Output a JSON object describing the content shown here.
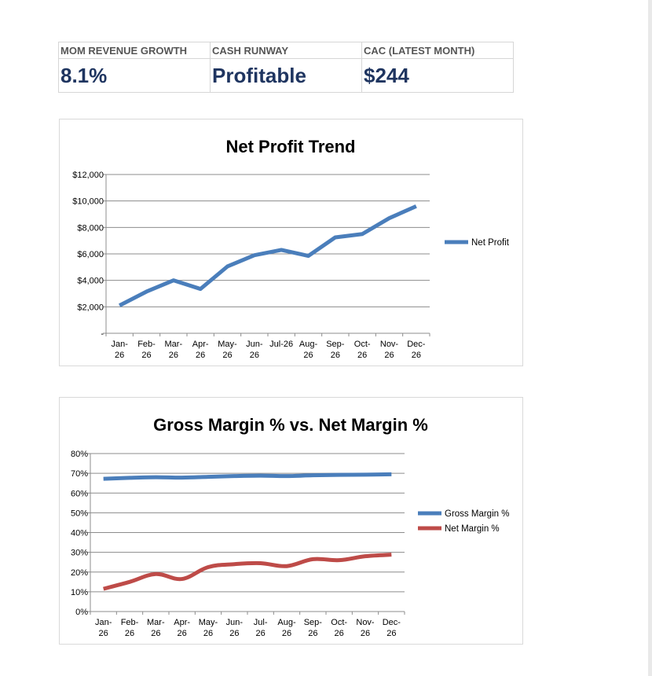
{
  "kpis": [
    {
      "label": "MOM REVENUE GROWTH",
      "value": "8.1%"
    },
    {
      "label": "CASH RUNWAY",
      "value": "Profitable"
    },
    {
      "label": "CAC (LATEST MONTH)",
      "value": "$244"
    }
  ],
  "colors": {
    "kpi_value": "#1f3560",
    "series_blue": "#4a7ebb",
    "series_red": "#be4b48",
    "gridline": "#8c8c8c"
  },
  "chart_data": [
    {
      "type": "line",
      "title": "Net Profit Trend",
      "categories": [
        "Jan-26",
        "Feb-26",
        "Mar-26",
        "Apr-26",
        "May-26",
        "Jun-26",
        "Jul-26",
        "Aug-26",
        "Sep-26",
        "Oct-26",
        "Nov-26",
        "Dec-26"
      ],
      "category_labels": [
        [
          "Jan-",
          "26"
        ],
        [
          "Feb-",
          "26"
        ],
        [
          "Mar-",
          "26"
        ],
        [
          "Apr-",
          "26"
        ],
        [
          "May-",
          "26"
        ],
        [
          "Jun-",
          "26"
        ],
        [
          "Jul-26"
        ],
        [
          "Aug-",
          "26"
        ],
        [
          "Sep-",
          "26"
        ],
        [
          "Oct-",
          "26"
        ],
        [
          "Nov-",
          "26"
        ],
        [
          "Dec-",
          "26"
        ]
      ],
      "series": [
        {
          "name": "Net Profit",
          "color": "#4a7ebb",
          "values": [
            2100,
            3150,
            4000,
            3350,
            5050,
            5900,
            6300,
            5850,
            7250,
            7500,
            8700,
            9600
          ]
        }
      ],
      "ylim": [
        0,
        12000
      ],
      "yticks": [
        0,
        2000,
        4000,
        6000,
        8000,
        10000,
        12000
      ],
      "ytick_labels": [
        "-",
        "$2,000",
        "$4,000",
        "$6,000",
        "$8,000",
        "$10,000",
        "$12,000"
      ],
      "grid": true,
      "legend": "right"
    },
    {
      "type": "line",
      "title": "Gross Margin % vs. Net Margin %",
      "categories": [
        "Jan-26",
        "Feb-26",
        "Mar-26",
        "Apr-26",
        "May-26",
        "Jun-26",
        "Jul-26",
        "Aug-26",
        "Sep-26",
        "Oct-26",
        "Nov-26",
        "Dec-26"
      ],
      "category_labels": [
        [
          "Jan-",
          "26"
        ],
        [
          "Feb-",
          "26"
        ],
        [
          "Mar-",
          "26"
        ],
        [
          "Apr-",
          "26"
        ],
        [
          "May-",
          "26"
        ],
        [
          "Jun-",
          "26"
        ],
        [
          "Jul-",
          "26"
        ],
        [
          "Aug-",
          "26"
        ],
        [
          "Sep-",
          "26"
        ],
        [
          "Oct-",
          "26"
        ],
        [
          "Nov-",
          "26"
        ],
        [
          "Dec-",
          "26"
        ]
      ],
      "series": [
        {
          "name": "Gross Margin %",
          "color": "#4a7ebb",
          "values": [
            67.2,
            67.7,
            68.0,
            67.8,
            68.2,
            68.6,
            68.8,
            68.6,
            69.0,
            69.2,
            69.3,
            69.5
          ]
        },
        {
          "name": "Net Margin %",
          "color": "#be4b48",
          "values": [
            11.5,
            15.0,
            19.0,
            16.5,
            22.5,
            24.0,
            24.5,
            23.0,
            26.5,
            26.0,
            28.0,
            28.8
          ]
        }
      ],
      "ylim": [
        0,
        80
      ],
      "yticks": [
        0,
        10,
        20,
        30,
        40,
        50,
        60,
        70,
        80
      ],
      "ytick_labels": [
        "0%",
        "10%",
        "20%",
        "30%",
        "40%",
        "50%",
        "60%",
        "70%",
        "80%"
      ],
      "grid": true,
      "legend": "right"
    }
  ]
}
